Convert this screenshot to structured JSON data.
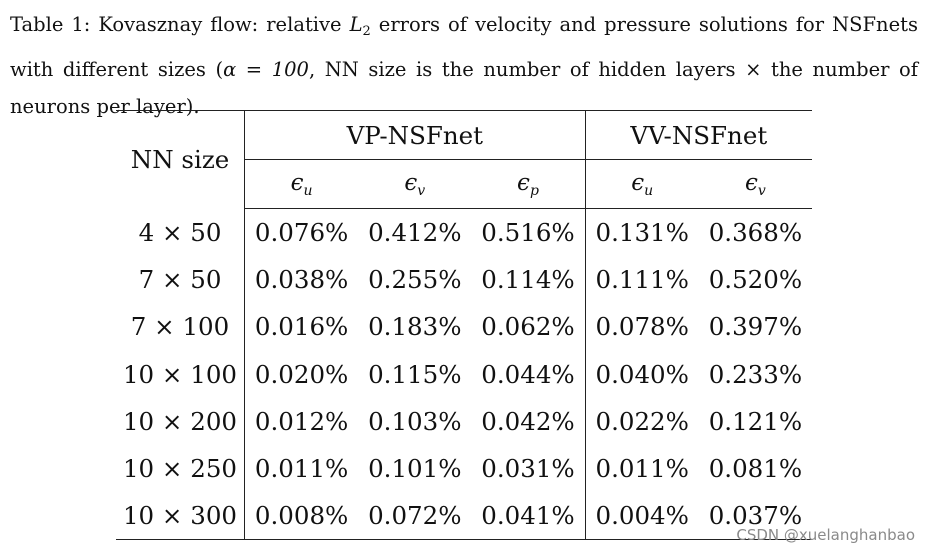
{
  "caption": {
    "lead": "Table 1: Kovasznay flow: relative ",
    "l2_symbol": "L",
    "l2_subscript": "2",
    "mid": " errors of velocity and pressure solutions for NSFnets with different sizes (",
    "alpha_expr": "α = 100",
    "tail": ", NN size is the number of hidden layers × the number of neurons per layer)."
  },
  "table": {
    "row_header": "NN size",
    "groups": [
      "VP-NSFnet",
      "VV-NSFnet"
    ],
    "metrics": [
      {
        "symbol": "ϵ",
        "subscript": "u"
      },
      {
        "symbol": "ϵ",
        "subscript": "v"
      },
      {
        "symbol": "ϵ",
        "subscript": "p"
      },
      {
        "symbol": "ϵ",
        "subscript": "u"
      },
      {
        "symbol": "ϵ",
        "subscript": "v"
      }
    ],
    "rows": [
      {
        "size": "4 × 50",
        "values": [
          "0.076%",
          "0.412%",
          "0.516%",
          "0.131%",
          "0.368%"
        ]
      },
      {
        "size": "7 × 50",
        "values": [
          "0.038%",
          "0.255%",
          "0.114%",
          "0.111%",
          "0.520%"
        ]
      },
      {
        "size": "7 × 100",
        "values": [
          "0.016%",
          "0.183%",
          "0.062%",
          "0.078%",
          "0.397%"
        ]
      },
      {
        "size": "10 × 100",
        "values": [
          "0.020%",
          "0.115%",
          "0.044%",
          "0.040%",
          "0.233%"
        ]
      },
      {
        "size": "10 × 200",
        "values": [
          "0.012%",
          "0.103%",
          "0.042%",
          "0.022%",
          "0.121%"
        ]
      },
      {
        "size": "10 × 250",
        "values": [
          "0.011%",
          "0.101%",
          "0.031%",
          "0.011%",
          "0.081%"
        ]
      },
      {
        "size": "10 × 300",
        "values": [
          "0.008%",
          "0.072%",
          "0.041%",
          "0.004%",
          "0.037%"
        ]
      }
    ]
  },
  "watermark": "CSDN @xuelanghanbao"
}
